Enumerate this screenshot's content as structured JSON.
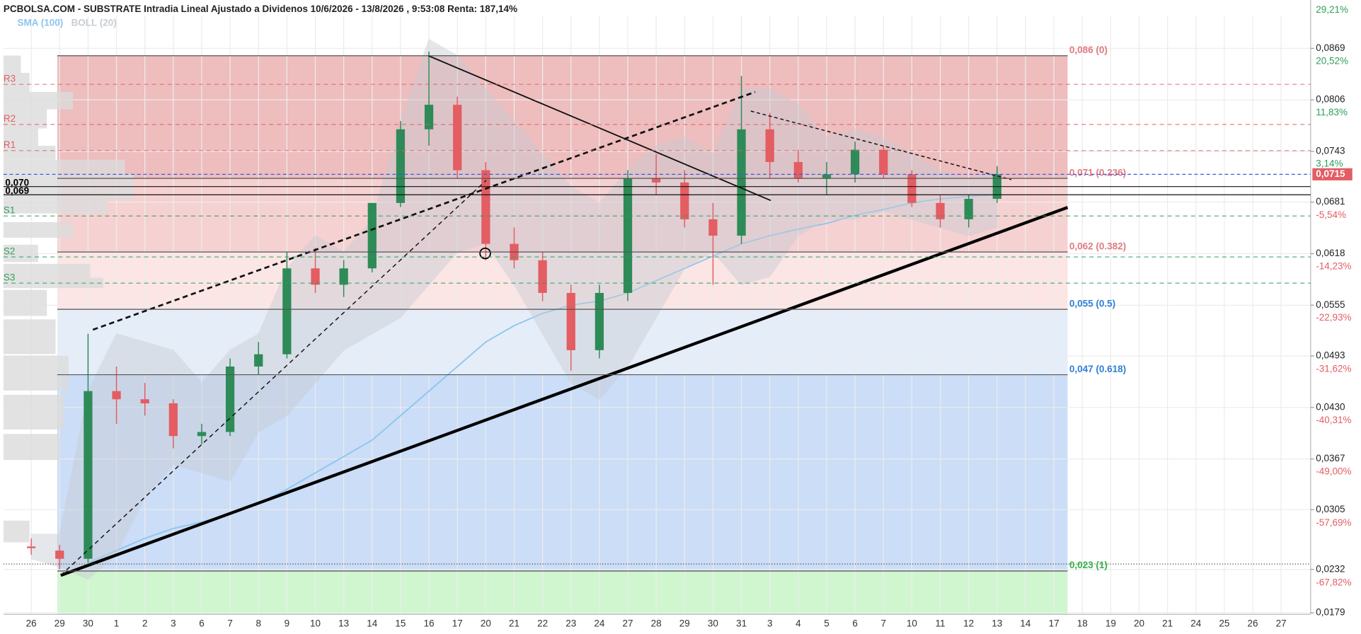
{
  "chart_data": {
    "type": "candlestick",
    "title": "PCBOLSA.COM - SUBSTRATE Intradia Lineal Ajustado a Dividenos 10/6/2026 - 13/8/2026 , 9:53:08 Renta: 187,14%",
    "categories": [
      "26",
      "29",
      "30",
      "1",
      "2",
      "3",
      "6",
      "7",
      "8",
      "9",
      "10",
      "13",
      "14",
      "15",
      "16",
      "17",
      "20",
      "21",
      "22",
      "23",
      "24",
      "27",
      "28",
      "29",
      "30",
      "31",
      "3",
      "4",
      "5",
      "6",
      "7",
      "10",
      "11",
      "12",
      "13",
      "14",
      "17",
      "18",
      "19",
      "20",
      "21",
      "24",
      "25",
      "26",
      "27"
    ],
    "open": [
      0.026,
      0.0255,
      0.0245,
      0.045,
      0.044,
      0.0435,
      0.0395,
      0.04,
      0.048,
      0.0495,
      0.06,
      0.058,
      0.06,
      0.068,
      0.077,
      0.08,
      0.072,
      0.063,
      0.061,
      0.057,
      0.05,
      0.057,
      0.071,
      0.0705,
      0.066,
      0.064,
      0.077,
      0.073,
      0.071,
      0.0715,
      0.0745,
      0.0715,
      0.068,
      0.066,
      0.0685,
      null,
      null,
      null,
      null,
      null,
      null,
      null,
      null,
      null,
      null
    ],
    "high": [
      0.027,
      0.0262,
      0.052,
      0.048,
      0.046,
      0.044,
      0.041,
      0.049,
      0.051,
      0.062,
      0.0625,
      0.061,
      0.068,
      0.078,
      0.0865,
      0.081,
      0.073,
      0.065,
      0.062,
      0.058,
      0.058,
      0.072,
      0.074,
      0.072,
      0.068,
      0.0835,
      0.079,
      0.0745,
      0.073,
      0.0755,
      0.075,
      0.072,
      0.069,
      0.069,
      0.0725,
      null,
      null,
      null,
      null,
      null,
      null,
      null,
      null,
      null,
      null
    ],
    "low": [
      0.025,
      0.0232,
      0.024,
      0.041,
      0.042,
      0.038,
      0.0385,
      0.0395,
      0.047,
      0.049,
      0.057,
      0.0565,
      0.0595,
      0.0675,
      0.075,
      0.071,
      0.061,
      0.06,
      0.056,
      0.0475,
      0.049,
      0.056,
      0.069,
      0.065,
      0.058,
      0.063,
      0.071,
      0.0705,
      0.069,
      0.0705,
      0.071,
      0.0675,
      0.065,
      0.065,
      0.068,
      null,
      null,
      null,
      null,
      null,
      null,
      null,
      null,
      null,
      null
    ],
    "close": [
      0.0258,
      0.0245,
      0.045,
      0.044,
      0.0435,
      0.0395,
      0.04,
      0.048,
      0.0495,
      0.06,
      0.058,
      0.06,
      0.068,
      0.077,
      0.08,
      0.072,
      0.063,
      0.061,
      0.057,
      0.05,
      0.057,
      0.071,
      0.0705,
      0.066,
      0.064,
      0.077,
      0.073,
      0.071,
      0.0715,
      0.0745,
      0.0715,
      0.068,
      0.066,
      0.0685,
      0.0715,
      null,
      null,
      null,
      null,
      null,
      null,
      null,
      null,
      null,
      null
    ],
    "up_color": "#2e8b57",
    "down_color": "#e35d63",
    "series": [
      {
        "name": "SMA (100)",
        "color": "#8cc6ee",
        "values": [
          null,
          null,
          0.024,
          0.0255,
          0.027,
          0.0282,
          0.029,
          0.03,
          0.0312,
          0.033,
          0.035,
          0.037,
          0.039,
          0.042,
          0.045,
          0.048,
          0.051,
          0.053,
          0.0545,
          0.0555,
          0.056,
          0.057,
          0.0585,
          0.06,
          0.0615,
          0.063,
          0.064,
          0.0648,
          0.0655,
          0.0665,
          0.0672,
          0.068,
          0.0685,
          0.0688,
          0.069,
          null,
          null,
          null,
          null,
          null,
          null,
          null,
          null,
          null,
          null
        ]
      },
      {
        "name": "BOLL (20)",
        "color": "#c7ccd4",
        "upper": [
          0.0275,
          0.0275,
          0.045,
          0.052,
          0.051,
          0.05,
          0.046,
          0.05,
          0.052,
          0.06,
          0.064,
          0.062,
          0.066,
          0.078,
          0.088,
          0.086,
          0.082,
          0.078,
          0.074,
          0.07,
          0.068,
          0.072,
          0.075,
          0.076,
          0.074,
          0.082,
          0.082,
          0.08,
          0.076,
          0.077,
          0.076,
          0.074,
          0.072,
          0.071,
          0.072,
          null,
          null,
          null,
          null,
          null,
          null,
          null,
          null,
          null,
          null
        ],
        "lower": [
          0.0245,
          0.0235,
          0.022,
          0.025,
          0.032,
          0.036,
          0.035,
          0.034,
          0.04,
          0.042,
          0.046,
          0.05,
          0.052,
          0.054,
          0.058,
          0.062,
          0.063,
          0.058,
          0.052,
          0.046,
          0.044,
          0.048,
          0.054,
          0.06,
          0.062,
          0.058,
          0.059,
          0.064,
          0.066,
          0.066,
          0.067,
          0.066,
          0.065,
          0.064,
          0.065,
          null,
          null,
          null,
          null,
          null,
          null,
          null,
          null,
          null,
          null
        ]
      }
    ],
    "ylim": [
      0.0177,
      0.0909
    ],
    "yticks": [
      {
        "value": 0.0869,
        "label": "0,0869"
      },
      {
        "value": 0.0806,
        "label": "0,0806"
      },
      {
        "value": 0.0743,
        "label": "0,0743"
      },
      {
        "value": 0.0681,
        "label": "0,0681"
      },
      {
        "value": 0.0618,
        "label": "0,0618"
      },
      {
        "value": 0.0555,
        "label": "0,0555"
      },
      {
        "value": 0.0493,
        "label": "0,0493"
      },
      {
        "value": 0.043,
        "label": "0,0430"
      },
      {
        "value": 0.0367,
        "label": "0,0367"
      },
      {
        "value": 0.0305,
        "label": "0,0305"
      },
      {
        "value": 0.0232,
        "label": "0,0232"
      },
      {
        "value": 0.0179,
        "label": "0,0179"
      }
    ],
    "y2lim": [
      -73.11,
      28.31
    ],
    "y2ticks": [
      {
        "value": 29.21,
        "label": "29,21%"
      },
      {
        "value": 20.52,
        "label": "20,52%"
      },
      {
        "value": 11.83,
        "label": "11,83%"
      },
      {
        "value": 3.14,
        "label": "3,14%"
      },
      {
        "value": -5.54,
        "label": "-5,54%"
      },
      {
        "value": -14.23,
        "label": "-14,23%"
      },
      {
        "value": -22.93,
        "label": "-22,93%"
      },
      {
        "value": -31.62,
        "label": "-31,62%"
      },
      {
        "value": -40.31,
        "label": "-40,31%"
      },
      {
        "value": -49.0,
        "label": "-49,00%"
      },
      {
        "value": -57.69,
        "label": "-57,69%"
      },
      {
        "value": -67.82,
        "label": "-67,82%"
      }
    ],
    "y2_positive_color": "#2e9e5b",
    "y2_negative_color": "#e35d63",
    "fibonacci": [
      {
        "value": 0.086,
        "label": "0,086 (0)",
        "color": "#ebb1b3",
        "label_color": "#e07a7e"
      },
      {
        "value": 0.071,
        "label": "0,071 (0.236)",
        "color": "#f4c9ca",
        "label_color": "#e07a7e"
      },
      {
        "value": 0.062,
        "label": "0,062 (0.382)",
        "color": "#fbe1e1",
        "label_color": "#e07a7e"
      },
      {
        "value": 0.055,
        "label": "0,055 (0.5)",
        "color": "#e1eaf8",
        "label_color": "#2f7fd6"
      },
      {
        "value": 0.047,
        "label": "0,047 (0.618)",
        "color": "#c2d7f6",
        "label_color": "#2f7fd6"
      },
      {
        "value": 0.023,
        "label": "0,023 (1)",
        "color": "#c8f4c8",
        "label_color": "#34b34a"
      }
    ],
    "pivots": [
      {
        "name": "R3",
        "value": 0.0825,
        "color": "#e35d63"
      },
      {
        "name": "R2",
        "value": 0.0776,
        "color": "#e35d63"
      },
      {
        "name": "R1",
        "value": 0.0744,
        "color": "#e35d63"
      },
      {
        "name": "S1",
        "value": 0.0664,
        "color": "#2e9e5b"
      },
      {
        "name": "S2",
        "value": 0.0614,
        "color": "#2e9e5b"
      },
      {
        "name": "S3",
        "value": 0.0582,
        "color": "#2e9e5b"
      }
    ],
    "levels": [
      {
        "value": 0.07,
        "label": "0,070"
      },
      {
        "value": 0.069,
        "label": "0,069"
      }
    ],
    "last_price": {
      "value": 0.0715,
      "label": "0,0715"
    }
  }
}
